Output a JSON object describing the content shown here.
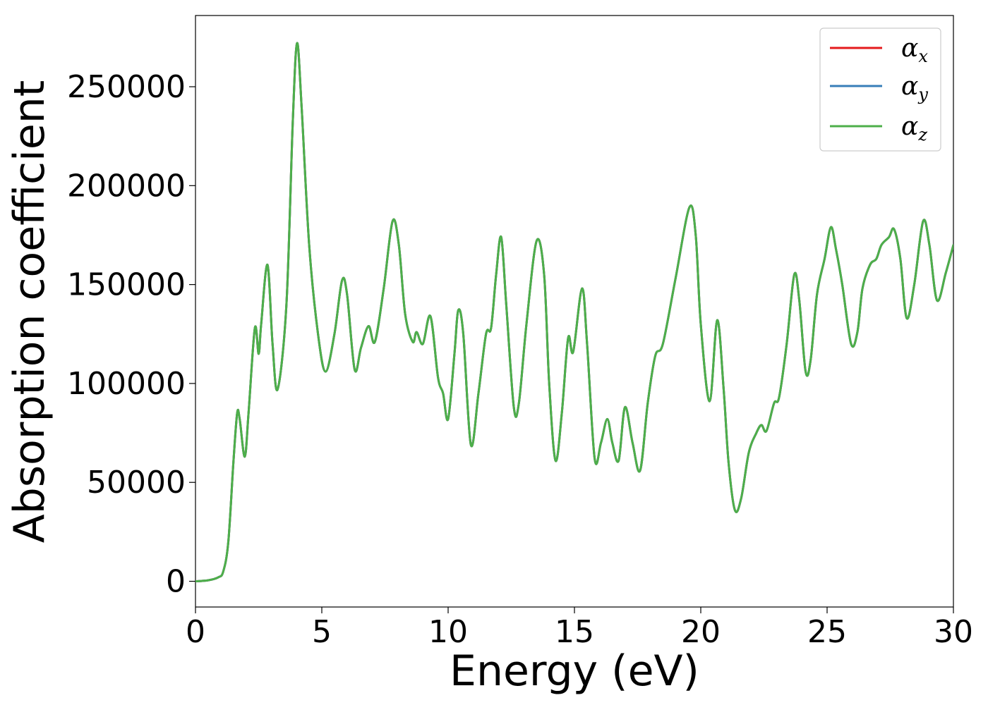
{
  "chart_data": {
    "type": "line",
    "xlabel": "Energy (eV)",
    "ylabel": "Absorption coefficient",
    "xlim": [
      0,
      30
    ],
    "ylim": [
      -13000,
      286000
    ],
    "x_ticks": [
      0,
      5,
      10,
      15,
      20,
      25,
      30
    ],
    "y_ticks": [
      0,
      50000,
      100000,
      150000,
      200000,
      250000
    ],
    "grid": false,
    "legend_position": "top-right",
    "x": [
      0,
      0.5,
      0.9,
      1.1,
      1.3,
      1.5,
      1.65,
      1.75,
      1.95,
      2.1,
      2.35,
      2.5,
      2.6,
      2.85,
      3.05,
      3.25,
      3.6,
      3.85,
      4.02,
      4.2,
      4.5,
      4.85,
      5.15,
      5.5,
      5.8,
      6.0,
      6.3,
      6.55,
      6.85,
      7.1,
      7.45,
      7.8,
      8.05,
      8.3,
      8.6,
      8.75,
      9.0,
      9.3,
      9.6,
      9.8,
      10.0,
      10.25,
      10.4,
      10.6,
      10.9,
      11.2,
      11.5,
      11.7,
      11.9,
      12.1,
      12.3,
      12.6,
      12.8,
      13.1,
      13.5,
      13.8,
      14.0,
      14.25,
      14.5,
      14.75,
      14.95,
      15.3,
      15.5,
      15.8,
      16.05,
      16.3,
      16.5,
      16.75,
      17.0,
      17.3,
      17.6,
      17.9,
      18.2,
      18.5,
      19.0,
      19.55,
      19.8,
      20.0,
      20.35,
      20.65,
      20.9,
      21.1,
      21.35,
      21.6,
      21.9,
      22.2,
      22.4,
      22.6,
      22.9,
      23.1,
      23.4,
      23.7,
      23.9,
      24.15,
      24.35,
      24.6,
      24.9,
      25.15,
      25.35,
      25.6,
      25.95,
      26.2,
      26.4,
      26.7,
      26.95,
      27.15,
      27.45,
      27.65,
      27.9,
      28.15,
      28.45,
      28.8,
      29.05,
      29.35,
      29.7,
      30.0
    ],
    "series": [
      {
        "name": "α_x",
        "color": "#e41a1c",
        "values": [
          0,
          500,
          2000,
          5000,
          20000,
          60000,
          85000,
          82000,
          63000,
          85000,
          128000,
          115000,
          130000,
          160000,
          120000,
          97000,
          140000,
          232000,
          272000,
          240000,
          170000,
          125000,
          106000,
          125000,
          152000,
          145000,
          107000,
          118000,
          129000,
          121000,
          148000,
          182000,
          170000,
          135000,
          121000,
          126000,
          120000,
          134000,
          103000,
          95000,
          82000,
          115000,
          137000,
          125000,
          69000,
          95000,
          125000,
          128000,
          155000,
          174000,
          140000,
          88000,
          90000,
          130000,
          172000,
          155000,
          100000,
          61000,
          85000,
          123000,
          116000,
          148000,
          120000,
          62000,
          70000,
          82000,
          70000,
          61000,
          88000,
          70000,
          56000,
          90000,
          114000,
          120000,
          153000,
          189000,
          175000,
          130000,
          91000,
          132000,
          98000,
          60000,
          36000,
          42000,
          65000,
          75000,
          79000,
          76000,
          90000,
          93000,
          120000,
          155000,
          142000,
          106000,
          112000,
          145000,
          163000,
          179000,
          168000,
          150000,
          120000,
          126000,
          148000,
          160000,
          163000,
          170000,
          174000,
          178000,
          163000,
          133000,
          150000,
          182000,
          170000,
          142000,
          156000,
          170000
        ]
      },
      {
        "name": "α_y",
        "color": "#377eb8",
        "values": [
          0,
          500,
          2000,
          5000,
          20000,
          60000,
          85000,
          82000,
          63000,
          85000,
          128000,
          115000,
          130000,
          160000,
          120000,
          97000,
          140000,
          232000,
          272000,
          240000,
          170000,
          125000,
          106000,
          125000,
          152000,
          145000,
          107000,
          118000,
          129000,
          121000,
          148000,
          182000,
          170000,
          135000,
          121000,
          126000,
          120000,
          134000,
          103000,
          95000,
          82000,
          115000,
          137000,
          125000,
          69000,
          95000,
          125000,
          128000,
          155000,
          174000,
          140000,
          88000,
          90000,
          130000,
          172000,
          155000,
          100000,
          61000,
          85000,
          123000,
          116000,
          148000,
          120000,
          62000,
          70000,
          82000,
          70000,
          61000,
          88000,
          70000,
          56000,
          90000,
          114000,
          120000,
          153000,
          189000,
          175000,
          130000,
          91000,
          132000,
          98000,
          60000,
          36000,
          42000,
          65000,
          75000,
          79000,
          76000,
          90000,
          93000,
          120000,
          155000,
          142000,
          106000,
          112000,
          145000,
          163000,
          179000,
          168000,
          150000,
          120000,
          126000,
          148000,
          160000,
          163000,
          170000,
          174000,
          178000,
          163000,
          133000,
          150000,
          182000,
          170000,
          142000,
          156000,
          170000
        ]
      },
      {
        "name": "α_z",
        "color": "#4daf4a",
        "values": [
          0,
          500,
          2000,
          5000,
          20000,
          60000,
          85000,
          82000,
          63000,
          85000,
          128000,
          115000,
          130000,
          160000,
          120000,
          97000,
          140000,
          232000,
          272000,
          240000,
          170000,
          125000,
          106000,
          125000,
          152000,
          145000,
          107000,
          118000,
          129000,
          121000,
          148000,
          182000,
          170000,
          135000,
          121000,
          126000,
          120000,
          134000,
          103000,
          95000,
          82000,
          115000,
          137000,
          125000,
          69000,
          95000,
          125000,
          128000,
          155000,
          174000,
          140000,
          88000,
          90000,
          130000,
          172000,
          155000,
          100000,
          61000,
          85000,
          123000,
          116000,
          148000,
          120000,
          62000,
          70000,
          82000,
          70000,
          61000,
          88000,
          70000,
          56000,
          90000,
          114000,
          120000,
          153000,
          189000,
          175000,
          130000,
          91000,
          132000,
          98000,
          60000,
          36000,
          42000,
          65000,
          75000,
          79000,
          76000,
          90000,
          93000,
          120000,
          155000,
          142000,
          106000,
          112000,
          145000,
          163000,
          179000,
          168000,
          150000,
          120000,
          126000,
          148000,
          160000,
          163000,
          170000,
          174000,
          178000,
          163000,
          133000,
          150000,
          182000,
          170000,
          142000,
          156000,
          170000
        ]
      }
    ],
    "legend": [
      {
        "symbol": "α",
        "sub": "x"
      },
      {
        "symbol": "α",
        "sub": "y"
      },
      {
        "symbol": "α",
        "sub": "z"
      }
    ]
  }
}
